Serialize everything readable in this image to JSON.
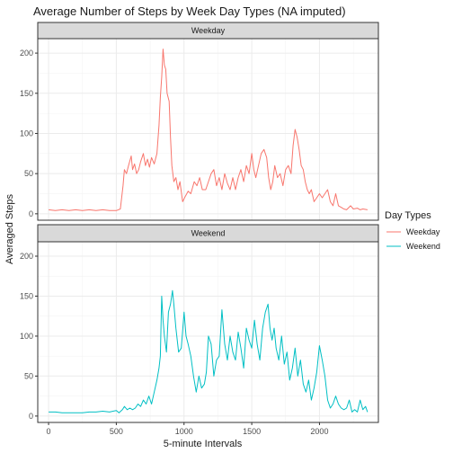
{
  "chart_data": {
    "type": "line",
    "title": "Average Number of Steps by Week Day Types (NA imputed)",
    "xlabel": "5-minute Intervals",
    "ylabel": "Averaged Steps",
    "xlim": [
      -80,
      2435
    ],
    "ylim": [
      -8,
      218
    ],
    "x_ticks": [
      0,
      500,
      1000,
      1500,
      2000
    ],
    "y_ticks": [
      0,
      50,
      100,
      150,
      200
    ],
    "grid": true,
    "legend": {
      "title": "Day Types",
      "position": "right"
    },
    "facets": [
      "Weekday",
      "Weekend"
    ],
    "series": [
      {
        "name": "Weekday",
        "color": "#F8766D",
        "points": [
          [
            0,
            5
          ],
          [
            50,
            4
          ],
          [
            100,
            5
          ],
          [
            150,
            4
          ],
          [
            200,
            5
          ],
          [
            250,
            4
          ],
          [
            300,
            5
          ],
          [
            350,
            4
          ],
          [
            400,
            5
          ],
          [
            450,
            4
          ],
          [
            500,
            4
          ],
          [
            530,
            6
          ],
          [
            550,
            35
          ],
          [
            560,
            55
          ],
          [
            575,
            50
          ],
          [
            590,
            60
          ],
          [
            610,
            72
          ],
          [
            620,
            55
          ],
          [
            635,
            62
          ],
          [
            650,
            50
          ],
          [
            665,
            55
          ],
          [
            680,
            65
          ],
          [
            700,
            75
          ],
          [
            715,
            60
          ],
          [
            730,
            68
          ],
          [
            745,
            58
          ],
          [
            760,
            70
          ],
          [
            780,
            62
          ],
          [
            800,
            75
          ],
          [
            815,
            110
          ],
          [
            825,
            145
          ],
          [
            835,
            170
          ],
          [
            845,
            205
          ],
          [
            855,
            185
          ],
          [
            865,
            180
          ],
          [
            875,
            150
          ],
          [
            890,
            140
          ],
          [
            900,
            95
          ],
          [
            910,
            60
          ],
          [
            925,
            40
          ],
          [
            940,
            45
          ],
          [
            955,
            30
          ],
          [
            970,
            40
          ],
          [
            990,
            15
          ],
          [
            1010,
            22
          ],
          [
            1030,
            28
          ],
          [
            1050,
            25
          ],
          [
            1075,
            40
          ],
          [
            1095,
            35
          ],
          [
            1115,
            45
          ],
          [
            1135,
            30
          ],
          [
            1160,
            30
          ],
          [
            1180,
            40
          ],
          [
            1200,
            50
          ],
          [
            1220,
            55
          ],
          [
            1240,
            35
          ],
          [
            1260,
            45
          ],
          [
            1280,
            30
          ],
          [
            1300,
            50
          ],
          [
            1320,
            38
          ],
          [
            1340,
            30
          ],
          [
            1360,
            45
          ],
          [
            1380,
            30
          ],
          [
            1400,
            45
          ],
          [
            1420,
            55
          ],
          [
            1440,
            40
          ],
          [
            1460,
            60
          ],
          [
            1480,
            50
          ],
          [
            1500,
            75
          ],
          [
            1515,
            55
          ],
          [
            1530,
            45
          ],
          [
            1550,
            60
          ],
          [
            1570,
            75
          ],
          [
            1590,
            80
          ],
          [
            1610,
            70
          ],
          [
            1625,
            45
          ],
          [
            1640,
            30
          ],
          [
            1655,
            40
          ],
          [
            1670,
            60
          ],
          [
            1690,
            45
          ],
          [
            1710,
            50
          ],
          [
            1730,
            35
          ],
          [
            1750,
            55
          ],
          [
            1770,
            60
          ],
          [
            1790,
            50
          ],
          [
            1805,
            85
          ],
          [
            1820,
            105
          ],
          [
            1835,
            95
          ],
          [
            1850,
            80
          ],
          [
            1865,
            60
          ],
          [
            1880,
            55
          ],
          [
            1895,
            40
          ],
          [
            1910,
            30
          ],
          [
            1925,
            25
          ],
          [
            1940,
            30
          ],
          [
            1960,
            15
          ],
          [
            1980,
            20
          ],
          [
            2000,
            25
          ],
          [
            2020,
            20
          ],
          [
            2040,
            25
          ],
          [
            2060,
            30
          ],
          [
            2080,
            15
          ],
          [
            2100,
            10
          ],
          [
            2120,
            25
          ],
          [
            2140,
            10
          ],
          [
            2160,
            8
          ],
          [
            2180,
            6
          ],
          [
            2200,
            5
          ],
          [
            2230,
            10
          ],
          [
            2250,
            6
          ],
          [
            2280,
            7
          ],
          [
            2300,
            5
          ],
          [
            2320,
            6
          ],
          [
            2355,
            5
          ]
        ]
      },
      {
        "name": "Weekend",
        "color": "#00BFC4",
        "points": [
          [
            0,
            5
          ],
          [
            50,
            5
          ],
          [
            100,
            4
          ],
          [
            150,
            4
          ],
          [
            200,
            4
          ],
          [
            250,
            4
          ],
          [
            300,
            5
          ],
          [
            350,
            5
          ],
          [
            400,
            6
          ],
          [
            450,
            5
          ],
          [
            500,
            7
          ],
          [
            520,
            4
          ],
          [
            545,
            8
          ],
          [
            560,
            12
          ],
          [
            580,
            8
          ],
          [
            600,
            10
          ],
          [
            620,
            8
          ],
          [
            640,
            10
          ],
          [
            660,
            15
          ],
          [
            680,
            12
          ],
          [
            700,
            20
          ],
          [
            720,
            15
          ],
          [
            740,
            25
          ],
          [
            760,
            15
          ],
          [
            780,
            30
          ],
          [
            800,
            45
          ],
          [
            815,
            60
          ],
          [
            825,
            75
          ],
          [
            835,
            150
          ],
          [
            845,
            120
          ],
          [
            855,
            100
          ],
          [
            870,
            80
          ],
          [
            885,
            130
          ],
          [
            900,
            140
          ],
          [
            915,
            157
          ],
          [
            925,
            140
          ],
          [
            940,
            110
          ],
          [
            960,
            80
          ],
          [
            980,
            85
          ],
          [
            1000,
            130
          ],
          [
            1015,
            100
          ],
          [
            1030,
            90
          ],
          [
            1050,
            75
          ],
          [
            1070,
            50
          ],
          [
            1090,
            30
          ],
          [
            1110,
            50
          ],
          [
            1130,
            35
          ],
          [
            1150,
            40
          ],
          [
            1165,
            55
          ],
          [
            1180,
            100
          ],
          [
            1200,
            90
          ],
          [
            1220,
            50
          ],
          [
            1240,
            70
          ],
          [
            1260,
            75
          ],
          [
            1280,
            133
          ],
          [
            1300,
            90
          ],
          [
            1320,
            70
          ],
          [
            1340,
            100
          ],
          [
            1360,
            80
          ],
          [
            1380,
            70
          ],
          [
            1400,
            105
          ],
          [
            1420,
            85
          ],
          [
            1440,
            60
          ],
          [
            1460,
            110
          ],
          [
            1480,
            95
          ],
          [
            1500,
            85
          ],
          [
            1520,
            120
          ],
          [
            1540,
            90
          ],
          [
            1560,
            70
          ],
          [
            1580,
            110
          ],
          [
            1600,
            130
          ],
          [
            1620,
            140
          ],
          [
            1635,
            110
          ],
          [
            1650,
            95
          ],
          [
            1665,
            110
          ],
          [
            1680,
            85
          ],
          [
            1700,
            70
          ],
          [
            1720,
            100
          ],
          [
            1740,
            65
          ],
          [
            1760,
            80
          ],
          [
            1780,
            45
          ],
          [
            1800,
            60
          ],
          [
            1820,
            85
          ],
          [
            1840,
            50
          ],
          [
            1860,
            70
          ],
          [
            1880,
            40
          ],
          [
            1900,
            30
          ],
          [
            1920,
            45
          ],
          [
            1940,
            20
          ],
          [
            1960,
            35
          ],
          [
            1980,
            55
          ],
          [
            2000,
            88
          ],
          [
            2020,
            70
          ],
          [
            2040,
            50
          ],
          [
            2060,
            20
          ],
          [
            2080,
            10
          ],
          [
            2100,
            15
          ],
          [
            2120,
            25
          ],
          [
            2140,
            15
          ],
          [
            2160,
            10
          ],
          [
            2180,
            8
          ],
          [
            2200,
            10
          ],
          [
            2220,
            20
          ],
          [
            2240,
            5
          ],
          [
            2260,
            8
          ],
          [
            2280,
            5
          ],
          [
            2300,
            20
          ],
          [
            2320,
            8
          ],
          [
            2340,
            12
          ],
          [
            2355,
            5
          ]
        ]
      }
    ]
  }
}
